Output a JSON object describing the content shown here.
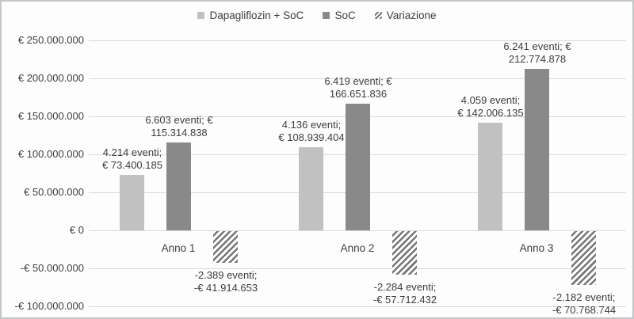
{
  "chart_data": {
    "type": "bar",
    "categories": [
      "Anno 1",
      "Anno 2",
      "Anno 3"
    ],
    "series": [
      {
        "name": "Dapagliflozin + SoC",
        "style": "light",
        "color": "#c1c1c1",
        "events": [
          4214,
          4136,
          4059
        ],
        "values": [
          73400185,
          108939404,
          142006135
        ],
        "labels": [
          [
            "4.214 eventi;",
            "€ 73.400.185"
          ],
          [
            "4.136 eventi;",
            "€ 108.939.404"
          ],
          [
            "4.059 eventi;",
            "€ 142.006.135"
          ]
        ]
      },
      {
        "name": "SoC",
        "style": "dark",
        "color": "#898989",
        "events": [
          6603,
          6419,
          6241
        ],
        "values": [
          115314838,
          166651836,
          212774878
        ],
        "labels": [
          [
            "6.603 eventi; €",
            "115.314.838"
          ],
          [
            "6.419 eventi; €",
            "166.651.836"
          ],
          [
            "6.241 eventi; €",
            "212.774.878"
          ]
        ]
      },
      {
        "name": "Variazione",
        "style": "hatch",
        "color": "#767676",
        "events": [
          -2389,
          -2284,
          -2182
        ],
        "values": [
          -41914653,
          -57712432,
          -70768744
        ],
        "labels": [
          [
            "-2.389 eventi;",
            "-€ 41.914.653"
          ],
          [
            "-2.284 eventi;",
            "-€ 57.712.432"
          ],
          [
            "-2.182 eventi;",
            "-€ 70.768.744"
          ]
        ]
      }
    ],
    "y_axis": {
      "min": -100000000,
      "max": 250000000,
      "step": 50000000,
      "ticks": [
        {
          "value": 250000000,
          "label": "€ 250.000.000"
        },
        {
          "value": 200000000,
          "label": "€ 200.000.000"
        },
        {
          "value": 150000000,
          "label": "€ 150.000.000"
        },
        {
          "value": 100000000,
          "label": "€ 100.000.000"
        },
        {
          "value": 50000000,
          "label": "€ 50.000.000"
        },
        {
          "value": 0,
          "label": "€ 0"
        },
        {
          "value": -50000000,
          "label": "-€ 50.000.000"
        },
        {
          "value": -100000000,
          "label": "-€ 100.000.000"
        }
      ]
    },
    "grid": true,
    "legend_position": "top-center"
  }
}
